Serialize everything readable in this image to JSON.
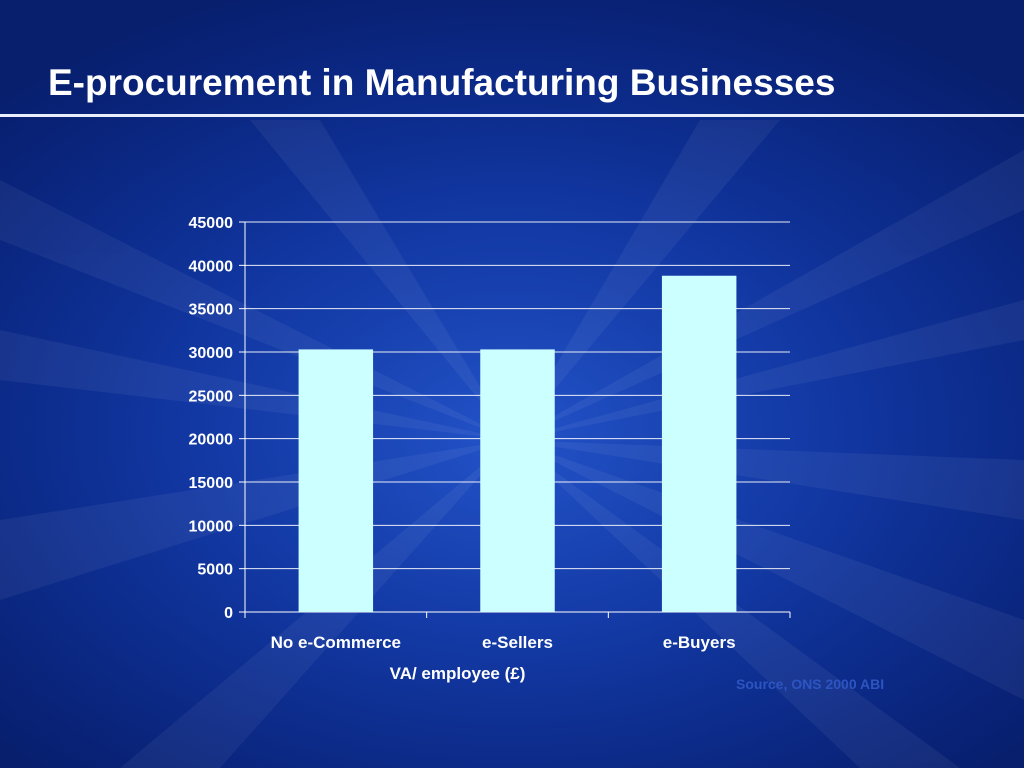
{
  "slide": {
    "title": "E-procurement in Manufacturing Businesses",
    "source": "Source, ONS 2000 ABI"
  },
  "colors": {
    "bar": "#ccffff",
    "background": "#0f34a0",
    "text": "#ffffff",
    "source_text": "#2d55c2"
  },
  "chart_data": {
    "type": "bar",
    "categories": [
      "No e-Commerce",
      "e-Sellers",
      "e-Buyers"
    ],
    "values": [
      30300,
      30300,
      38800
    ],
    "title": "",
    "xlabel": "VA/ employee (£)",
    "ylabel": "",
    "ylim": [
      0,
      45000
    ],
    "yticks": [
      0,
      5000,
      10000,
      15000,
      20000,
      25000,
      30000,
      35000,
      40000,
      45000
    ],
    "grid": true,
    "legend": "none"
  }
}
